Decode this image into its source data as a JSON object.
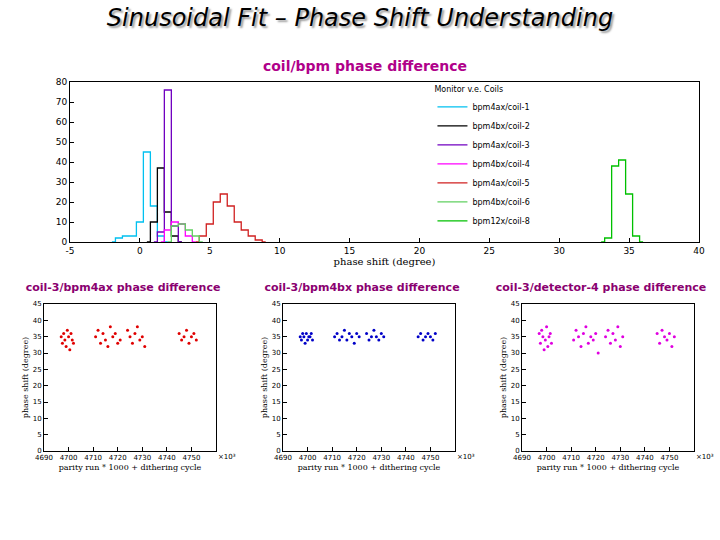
{
  "title": "Sinusoidal Fit – Phase Shift Understanding",
  "chart_data": [
    {
      "type": "line",
      "line_style": "step",
      "title": "coil/bpm phase difference",
      "x_label": "phase shift (degree)",
      "legend_title": "Monitor v.e. Coils",
      "legend": "top right",
      "grid": false,
      "xlim": [
        -5,
        40
      ],
      "xticks": [
        -5,
        0,
        5,
        10,
        15,
        20,
        25,
        30,
        35,
        40
      ],
      "ylim": [
        0,
        80
      ],
      "yticks": [
        0,
        10,
        20,
        30,
        40,
        50,
        60,
        70,
        80
      ],
      "series": [
        {
          "name": "bpm4ax/coil-1",
          "color": "#00c0f0",
          "x": [
            -2,
            -1.5,
            -1,
            -0.5,
            0,
            0.5,
            1,
            1.5,
            2
          ],
          "values": [
            0,
            2,
            3,
            3,
            10,
            45,
            18,
            3,
            0
          ]
        },
        {
          "name": "bpm4bx/coil-2",
          "color": "#000000",
          "x": [
            0.5,
            1,
            1.5,
            2,
            2.5,
            3
          ],
          "values": [
            0,
            10,
            37,
            15,
            3,
            0
          ]
        },
        {
          "name": "bpm4ax/coil-3",
          "color": "#7000c0",
          "x": [
            1,
            1.5,
            2,
            2.5,
            3
          ],
          "values": [
            0,
            5,
            76,
            8,
            0
          ]
        },
        {
          "name": "bpm4bx/coil-4",
          "color": "#ff00ff",
          "x": [
            1.5,
            2,
            2.5,
            3,
            3.5,
            4
          ],
          "values": [
            0,
            6,
            10,
            9,
            3,
            0
          ]
        },
        {
          "name": "bpm4ax/coil-5",
          "color": "#d02020",
          "x": [
            4,
            4.5,
            5,
            5.5,
            6,
            6.5,
            7,
            7.5,
            8,
            8.5,
            9
          ],
          "values": [
            0,
            3,
            9,
            20,
            24,
            18,
            10,
            6,
            3,
            1,
            0
          ]
        },
        {
          "name": "bpm4bx/coil-6",
          "color": "#60d060",
          "x": [
            2,
            2.5,
            3,
            3.5,
            4,
            4.5
          ],
          "values": [
            0,
            8,
            9,
            6,
            3,
            0
          ]
        },
        {
          "name": "bpm12x/coil-8",
          "color": "#00c000",
          "x": [
            33,
            33.5,
            34,
            34.5,
            35,
            35.5,
            36
          ],
          "values": [
            0,
            2,
            38,
            41,
            24,
            3,
            0
          ]
        }
      ]
    },
    {
      "type": "scatter",
      "marker": "circle",
      "title": "coil-3/bpm4ax phase difference",
      "x_label": "parity run * 1000 + dithering cycle",
      "y_label": "phase shift (degree)",
      "annotations": [
        "×10³"
      ],
      "grid": false,
      "xlim": [
        4690,
        4760
      ],
      "xticks": [
        4690,
        4700,
        4710,
        4720,
        4730,
        4740,
        4750
      ],
      "ylim": [
        0,
        45
      ],
      "yticks": [
        0,
        5,
        10,
        15,
        20,
        25,
        30,
        35,
        40,
        45
      ],
      "series": [
        {
          "color": "#e00000",
          "x": [
            4697,
            4697.5,
            4698,
            4698.5,
            4699,
            4699.5,
            4700,
            4700.5,
            4701,
            4701.5,
            4702,
            4711,
            4712,
            4713,
            4714,
            4715,
            4716,
            4717,
            4718,
            4719,
            4720,
            4721,
            4724,
            4725,
            4726,
            4727,
            4728,
            4729,
            4730,
            4731,
            4745,
            4746,
            4747,
            4748,
            4749,
            4750,
            4751,
            4752
          ],
          "values": [
            35,
            33,
            36,
            34,
            32,
            37,
            35,
            31,
            36,
            34,
            33,
            35,
            37,
            33,
            36,
            34,
            32,
            38,
            35,
            36,
            33,
            34,
            37,
            35,
            33,
            36,
            38,
            34,
            35,
            32,
            36,
            34,
            35,
            37,
            33,
            35,
            36,
            34
          ]
        }
      ]
    },
    {
      "type": "scatter",
      "marker": "circle",
      "title": "coil-3/bpm4bx phase difference",
      "x_label": "parity run * 1000 + dithering cycle",
      "y_label": "phase shift (degree)",
      "annotations": [
        "×10³"
      ],
      "grid": false,
      "xlim": [
        4690,
        4760
      ],
      "xticks": [
        4690,
        4700,
        4710,
        4720,
        4730,
        4740,
        4750
      ],
      "ylim": [
        0,
        45
      ],
      "yticks": [
        0,
        5,
        10,
        15,
        20,
        25,
        30,
        35,
        40,
        45
      ],
      "series": [
        {
          "color": "#0000c8",
          "x": [
            4697,
            4697.5,
            4698,
            4698.5,
            4699,
            4699.5,
            4700,
            4700.5,
            4701,
            4701.5,
            4702,
            4711,
            4712,
            4713,
            4714,
            4715,
            4716,
            4717,
            4718,
            4719,
            4720,
            4721,
            4724,
            4725,
            4726,
            4727,
            4728,
            4729,
            4730,
            4731,
            4745,
            4746,
            4747,
            4748,
            4749,
            4750,
            4751,
            4752
          ],
          "values": [
            35,
            34,
            36,
            35,
            33,
            36,
            34,
            35,
            35,
            36,
            34,
            35,
            36,
            34,
            35,
            37,
            34,
            36,
            35,
            33,
            36,
            35,
            36,
            34,
            35,
            37,
            35,
            34,
            36,
            35,
            35,
            36,
            34,
            35,
            36,
            35,
            34,
            36
          ]
        }
      ]
    },
    {
      "type": "scatter",
      "marker": "circle",
      "title": "coil-3/detector-4 phase difference",
      "x_label": "parity run * 1000 + dithering cycle",
      "y_label": "phase shift (degree)",
      "annotations": [
        "×10³"
      ],
      "grid": false,
      "xlim": [
        4690,
        4760
      ],
      "xticks": [
        4690,
        4700,
        4710,
        4720,
        4730,
        4740,
        4750
      ],
      "ylim": [
        0,
        45
      ],
      "yticks": [
        0,
        5,
        10,
        15,
        20,
        25,
        30,
        35,
        40,
        45
      ],
      "series": [
        {
          "color": "#e000e0",
          "x": [
            4697,
            4697.5,
            4698,
            4698.5,
            4699,
            4699.5,
            4700,
            4700.5,
            4701,
            4701.5,
            4702,
            4711,
            4712,
            4713,
            4714,
            4715,
            4716,
            4717,
            4718,
            4719,
            4720,
            4721,
            4724,
            4725,
            4726,
            4727,
            4728,
            4729,
            4730,
            4731,
            4745,
            4746,
            4747,
            4748,
            4749,
            4750,
            4751,
            4752
          ],
          "values": [
            36,
            33,
            37,
            35,
            31,
            34,
            38,
            32,
            35,
            36,
            33,
            34,
            37,
            35,
            32,
            36,
            38,
            33,
            35,
            34,
            36,
            30,
            35,
            37,
            33,
            36,
            34,
            38,
            32,
            35,
            36,
            33,
            37,
            35,
            34,
            36,
            32,
            35
          ]
        }
      ]
    }
  ]
}
